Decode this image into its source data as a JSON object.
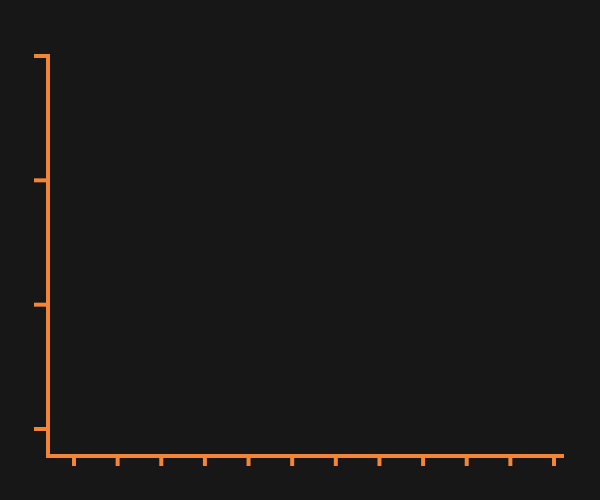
{
  "colors": {
    "background": "#171717",
    "axis": "#F58536"
  },
  "chart_data": {
    "type": "line",
    "title": "",
    "xlabel": "",
    "ylabel": "",
    "x_tick_count": 12,
    "y_tick_count": 4,
    "series": [],
    "grid": false,
    "legend": "none"
  }
}
